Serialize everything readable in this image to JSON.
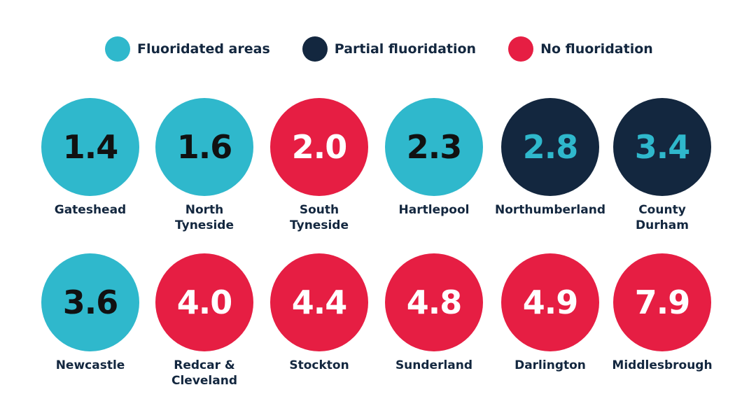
{
  "colors": {
    "fluoridated": "#2fb8cc",
    "partial": "#13273f",
    "none": "#e61e43",
    "text_dark": "#111111",
    "text_light": "#ffffff",
    "text_teal": "#2fb8cc"
  },
  "legend": [
    {
      "key": "fluoridated",
      "label": "Fluoridated areas"
    },
    {
      "key": "partial",
      "label": "Partial fluoridation"
    },
    {
      "key": "none",
      "label": "No fluoridation"
    }
  ],
  "chart_data": {
    "type": "bubble-grid",
    "title": "",
    "categories": [
      "Gateshead",
      "North Tyneside",
      "South Tyneside",
      "Hartlepool",
      "Northumberland",
      "County Durham",
      "Newcastle",
      "Redcar & Cleveland",
      "Stockton",
      "Sunderland",
      "Darlington",
      "Middlesbrough"
    ],
    "items": [
      {
        "name": "Gateshead",
        "label": "Gateshead",
        "value": "1.4",
        "group": "fluoridated"
      },
      {
        "name": "North Tyneside",
        "label": "North\nTyneside",
        "value": "1.6",
        "group": "fluoridated"
      },
      {
        "name": "South Tyneside",
        "label": "South\nTyneside",
        "value": "2.0",
        "group": "none"
      },
      {
        "name": "Hartlepool",
        "label": "Hartlepool",
        "value": "2.3",
        "group": "fluoridated"
      },
      {
        "name": "Northumberland",
        "label": "Northumberland",
        "value": "2.8",
        "group": "partial"
      },
      {
        "name": "County Durham",
        "label": "County\nDurham",
        "value": "3.4",
        "group": "partial"
      },
      {
        "name": "Newcastle",
        "label": "Newcastle",
        "value": "3.6",
        "group": "fluoridated"
      },
      {
        "name": "Redcar & Cleveland",
        "label": "Redcar &\nCleveland",
        "value": "4.0",
        "group": "none"
      },
      {
        "name": "Stockton",
        "label": "Stockton",
        "value": "4.4",
        "group": "none"
      },
      {
        "name": "Sunderland",
        "label": "Sunderland",
        "value": "4.8",
        "group": "none"
      },
      {
        "name": "Darlington",
        "label": "Darlington",
        "value": "4.9",
        "group": "none"
      },
      {
        "name": "Middlesbrough",
        "label": "Middlesbrough",
        "value": "7.9",
        "group": "none"
      }
    ]
  }
}
